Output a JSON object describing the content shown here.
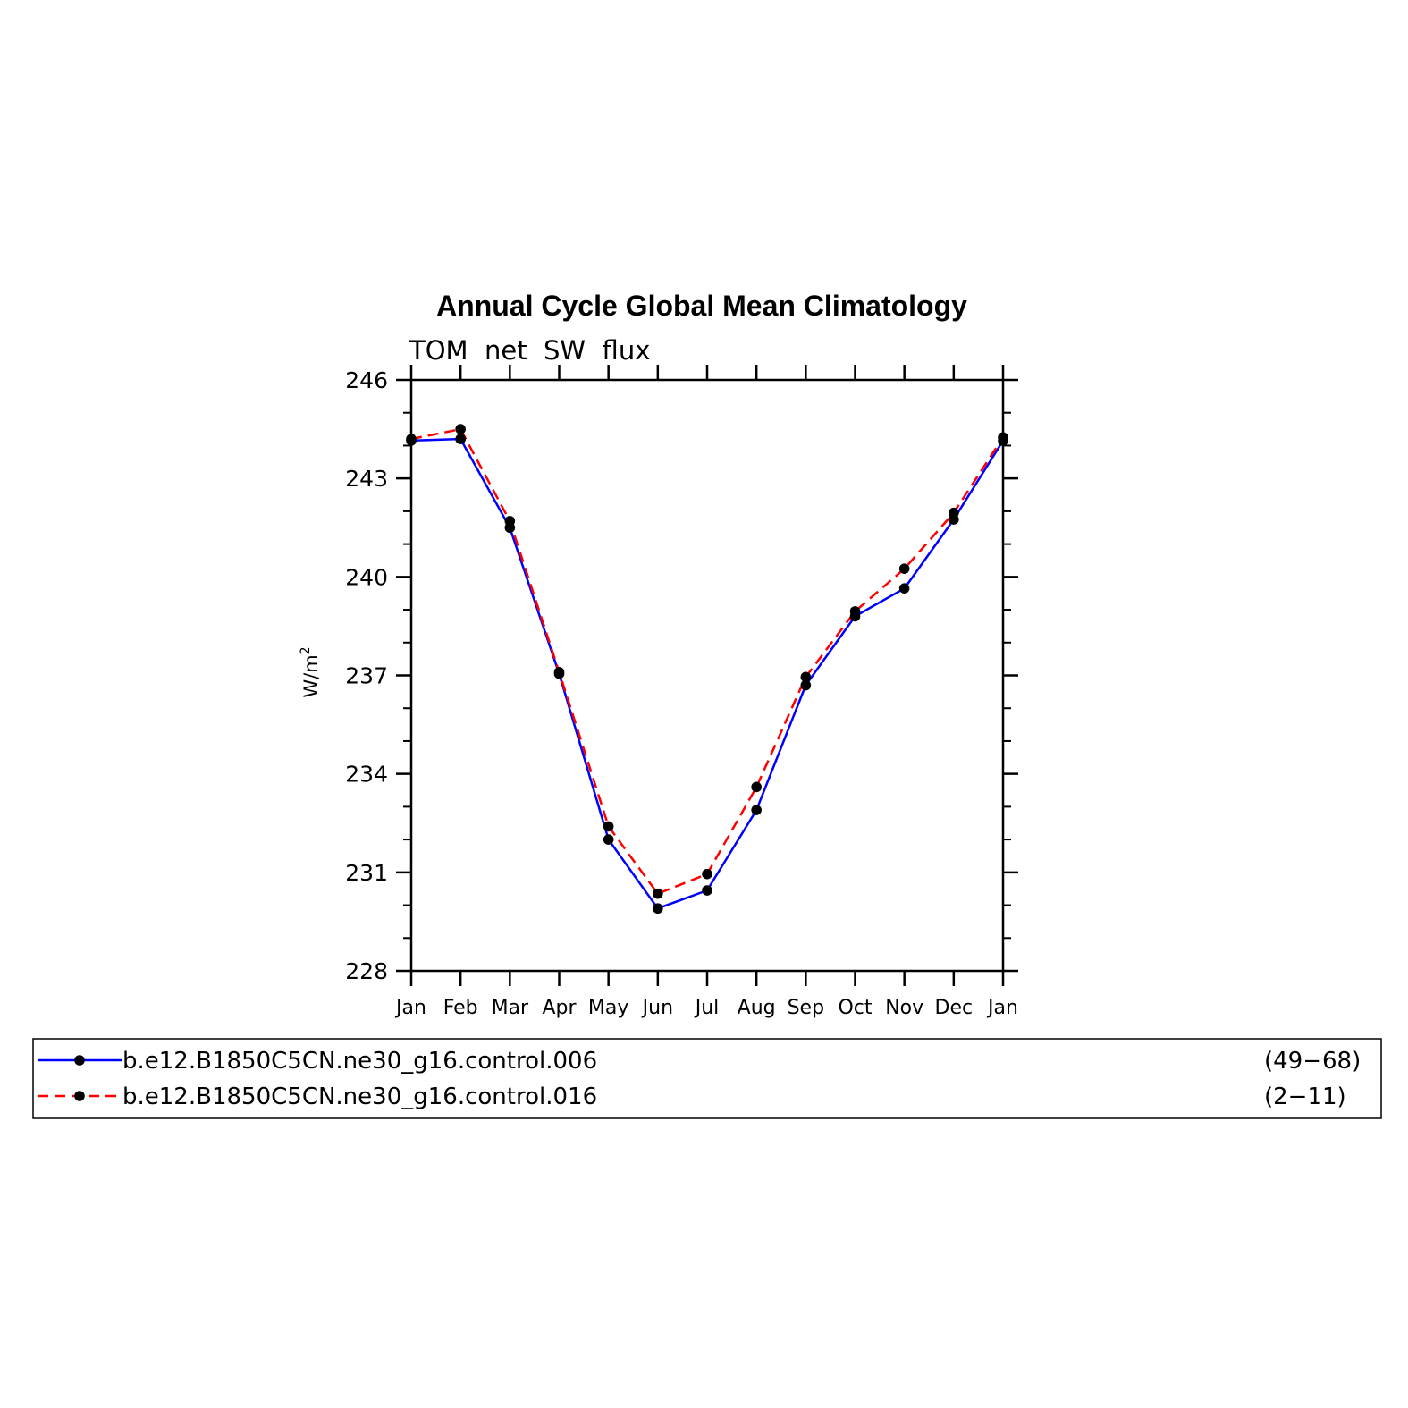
{
  "chart_data": {
    "type": "line",
    "title": "Annual Cycle Global Mean Climatology",
    "subtitle": "TOM  net  SW  flux",
    "ylabel": "W/m",
    "ylabel_superscript": "2",
    "xlabel": "",
    "categories": [
      "Jan",
      "Feb",
      "Mar",
      "Apr",
      "May",
      "Jun",
      "Jul",
      "Aug",
      "Sep",
      "Oct",
      "Nov",
      "Dec",
      "Jan"
    ],
    "ylim": [
      228,
      246
    ],
    "yticks": [
      "246",
      "243",
      "240",
      "237",
      "234",
      "231",
      "228"
    ],
    "ytick_values": [
      246,
      243,
      240,
      237,
      234,
      231,
      228
    ],
    "series": [
      {
        "name": "b.e12.B1850C5CN.ne30_g16.control.006",
        "period": "(49−68)",
        "color": "#0000ff",
        "dash": "solid",
        "values": [
          244.15,
          244.2,
          241.5,
          237.05,
          232.0,
          229.9,
          230.45,
          232.9,
          236.7,
          238.8,
          239.65,
          241.75,
          244.15
        ]
      },
      {
        "name": "b.e12.B1850C5CN.ne30_g16.control.016",
        "period": "(2−11)",
        "color": "#ff0000",
        "dash": "dashed",
        "values": [
          244.2,
          244.5,
          241.7,
          237.1,
          232.4,
          230.35,
          230.95,
          233.6,
          236.95,
          238.95,
          240.25,
          241.95,
          244.25
        ]
      }
    ],
    "marker_color": "#000000",
    "grid": false,
    "legend_position": "bottom"
  }
}
